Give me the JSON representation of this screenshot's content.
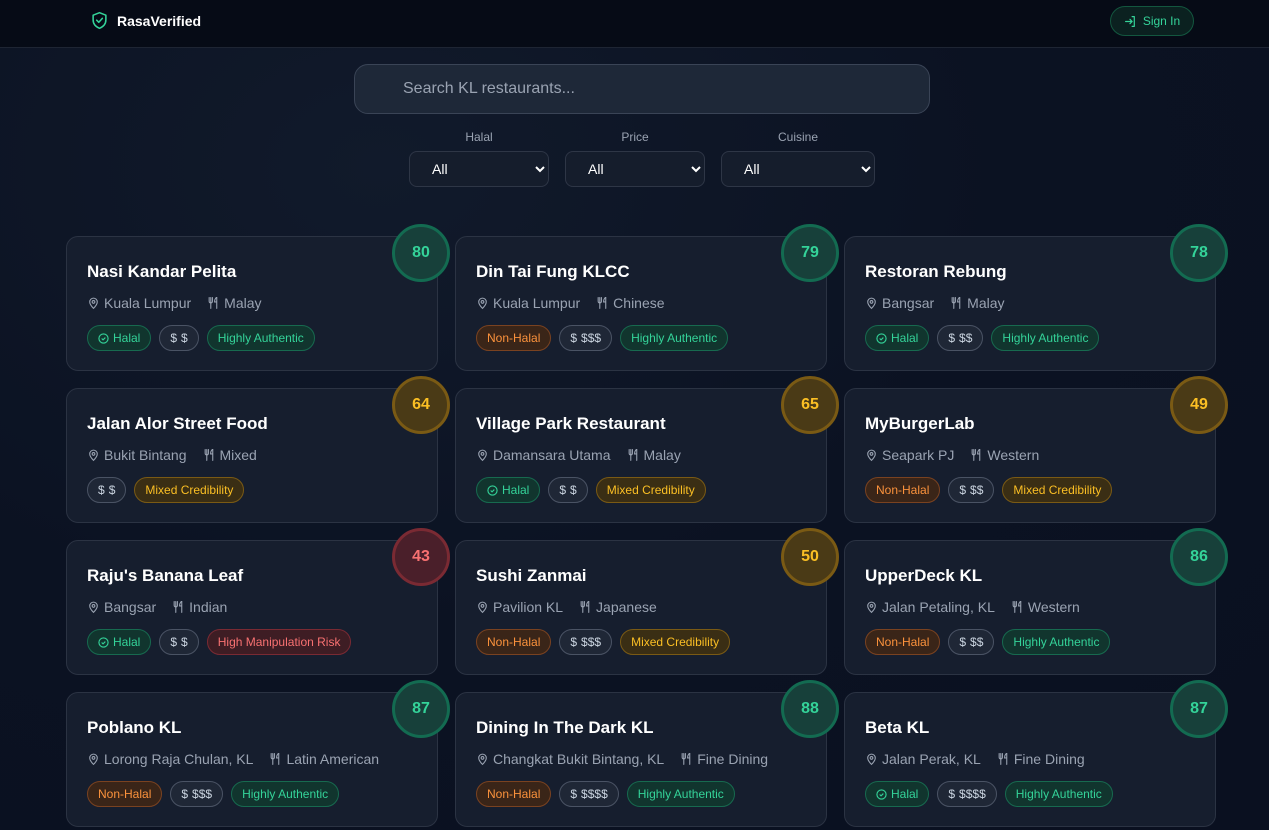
{
  "header": {
    "brand": "RasaVerified",
    "sign_in": "Sign In"
  },
  "search": {
    "placeholder": "Search KL restaurants...",
    "value": ""
  },
  "filters": [
    {
      "label": "Halal",
      "value": "All"
    },
    {
      "label": "Price",
      "value": "All"
    },
    {
      "label": "Cuisine",
      "value": "All"
    }
  ],
  "colors": {
    "accent": "#34d399",
    "amber": "#fbbf24",
    "red": "#f87171",
    "orange": "#fb923c"
  },
  "restaurants": [
    {
      "name": "Nasi Kandar Pelita",
      "location": "Kuala Lumpur",
      "cuisine": "Malay",
      "halal": "Halal",
      "price": "$",
      "credibility": "Highly Authentic",
      "score": "80",
      "level": "green"
    },
    {
      "name": "Din Tai Fung KLCC",
      "location": "Kuala Lumpur",
      "cuisine": "Chinese",
      "halal": "Non-Halal",
      "price": "$$$",
      "credibility": "Highly Authentic",
      "score": "79",
      "level": "green"
    },
    {
      "name": "Restoran Rebung",
      "location": "Bangsar",
      "cuisine": "Malay",
      "halal": "Halal",
      "price": "$$",
      "credibility": "Highly Authentic",
      "score": "78",
      "level": "green"
    },
    {
      "name": "Jalan Alor Street Food",
      "location": "Bukit Bintang",
      "cuisine": "Mixed",
      "halal": "",
      "price": "$",
      "credibility": "Mixed Credibility",
      "score": "64",
      "level": "amber"
    },
    {
      "name": "Village Park Restaurant",
      "location": "Damansara Utama",
      "cuisine": "Malay",
      "halal": "Halal",
      "price": "$",
      "credibility": "Mixed Credibility",
      "score": "65",
      "level": "amber"
    },
    {
      "name": "MyBurgerLab",
      "location": "Seapark PJ",
      "cuisine": "Western",
      "halal": "Non-Halal",
      "price": "$$",
      "credibility": "Mixed Credibility",
      "score": "49",
      "level": "amber"
    },
    {
      "name": "Raju's Banana Leaf",
      "location": "Bangsar",
      "cuisine": "Indian",
      "halal": "Halal",
      "price": "$",
      "credibility": "High Manipulation Risk",
      "score": "43",
      "level": "red"
    },
    {
      "name": "Sushi Zanmai",
      "location": "Pavilion KL",
      "cuisine": "Japanese",
      "halal": "Non-Halal",
      "price": "$$$",
      "credibility": "Mixed Credibility",
      "score": "50",
      "level": "amber"
    },
    {
      "name": "UpperDeck KL",
      "location": "Jalan Petaling, KL",
      "cuisine": "Western",
      "halal": "Non-Halal",
      "price": "$$",
      "credibility": "Highly Authentic",
      "score": "86",
      "level": "green"
    },
    {
      "name": "Poblano KL",
      "location": "Lorong Raja Chulan, KL",
      "cuisine": "Latin American",
      "halal": "Non-Halal",
      "price": "$$$",
      "credibility": "Highly Authentic",
      "score": "87",
      "level": "green"
    },
    {
      "name": "Dining In The Dark KL",
      "location": "Changkat Bukit Bintang, KL",
      "cuisine": "Fine Dining",
      "halal": "Non-Halal",
      "price": "$$$$",
      "credibility": "Highly Authentic",
      "score": "88",
      "level": "green"
    },
    {
      "name": "Beta KL",
      "location": "Jalan Perak, KL",
      "cuisine": "Fine Dining",
      "halal": "Halal",
      "price": "$$$$",
      "credibility": "Highly Authentic",
      "score": "87",
      "level": "green"
    }
  ]
}
